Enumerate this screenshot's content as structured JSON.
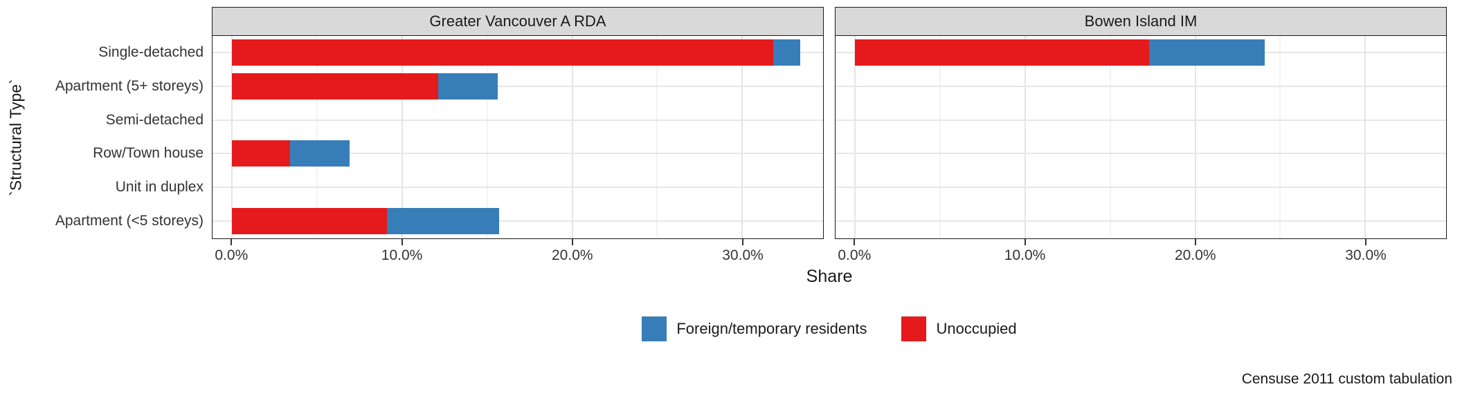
{
  "axes": {
    "y_title": "`Structural Type`",
    "x_title": "Share"
  },
  "caption": {
    "text": "Censuse 2011 custom tabulation"
  },
  "legend": {
    "items": [
      {
        "label": "Foreign/temporary residents",
        "color": "#377EB8"
      },
      {
        "label": "Unoccupied",
        "color": "#E41A1C"
      }
    ]
  },
  "chart_data": {
    "type": "bar",
    "orientation": "horizontal",
    "stacked": true,
    "categories": [
      "Single-detached",
      "Apartment (5+ storeys)",
      "Semi-detached",
      "Row/Town house",
      "Unit in duplex",
      "Apartment (<5 storeys)"
    ],
    "xlabel": "Share",
    "ylabel": "`Structural Type`",
    "xlim": [
      -1.15,
      34.75
    ],
    "x_ticks_percent": [
      0,
      10,
      20,
      30
    ],
    "x_tick_labels": [
      "0.0%",
      "10.0%",
      "20.0%",
      "30.0%"
    ],
    "x_minor_ticks_percent": [
      5,
      15,
      25
    ],
    "grid": true,
    "legend_position": "bottom",
    "facets": [
      {
        "title": "Greater Vancouver A RDA",
        "series": [
          {
            "name": "Unoccupied",
            "color": "#E41A1C",
            "values": [
              31.8,
              12.1,
              0,
              3.4,
              0,
              9.1
            ]
          },
          {
            "name": "Foreign/temporary residents",
            "color": "#377EB8",
            "values": [
              1.6,
              3.5,
              0,
              3.5,
              0,
              6.6
            ]
          }
        ]
      },
      {
        "title": "Bowen Island IM",
        "series": [
          {
            "name": "Unoccupied",
            "color": "#E41A1C",
            "values": [
              17.3,
              0,
              0,
              0,
              0,
              0
            ]
          },
          {
            "name": "Foreign/temporary residents",
            "color": "#377EB8",
            "values": [
              6.8,
              0,
              0,
              0,
              0,
              0
            ]
          }
        ]
      }
    ]
  }
}
